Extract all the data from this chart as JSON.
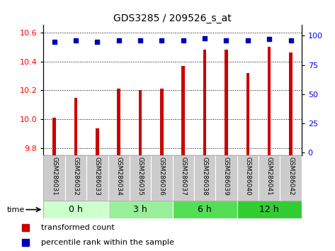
{
  "title": "GDS3285 / 209526_s_at",
  "samples": [
    "GSM286031",
    "GSM286032",
    "GSM286033",
    "GSM286034",
    "GSM286035",
    "GSM286036",
    "GSM286037",
    "GSM286038",
    "GSM286039",
    "GSM286040",
    "GSM286041",
    "GSM286042"
  ],
  "bar_values": [
    10.01,
    10.15,
    9.94,
    10.21,
    10.2,
    10.21,
    10.37,
    10.48,
    10.48,
    10.32,
    10.5,
    10.46
  ],
  "percentile_values": [
    95,
    96,
    95,
    96,
    96,
    96,
    96,
    98,
    96,
    96,
    97,
    96
  ],
  "bar_color": "#cc0000",
  "percentile_color": "#0000bb",
  "ylim_left": [
    9.75,
    10.65
  ],
  "ylim_right": [
    -2.5,
    109
  ],
  "yticks_left": [
    9.8,
    10.0,
    10.2,
    10.4,
    10.6
  ],
  "yticks_right": [
    0,
    25,
    50,
    75,
    100
  ],
  "groups": [
    {
      "label": "0 h",
      "start": 0,
      "end": 3,
      "color": "#ccffcc"
    },
    {
      "label": "3 h",
      "start": 3,
      "end": 6,
      "color": "#99ee99"
    },
    {
      "label": "6 h",
      "start": 6,
      "end": 9,
      "color": "#55dd55"
    },
    {
      "label": "12 h",
      "start": 9,
      "end": 12,
      "color": "#33cc33"
    }
  ],
  "legend_bar": "transformed count",
  "legend_pct": "percentile rank within the sample",
  "label_box_color": "#cccccc",
  "bar_width": 0.15
}
